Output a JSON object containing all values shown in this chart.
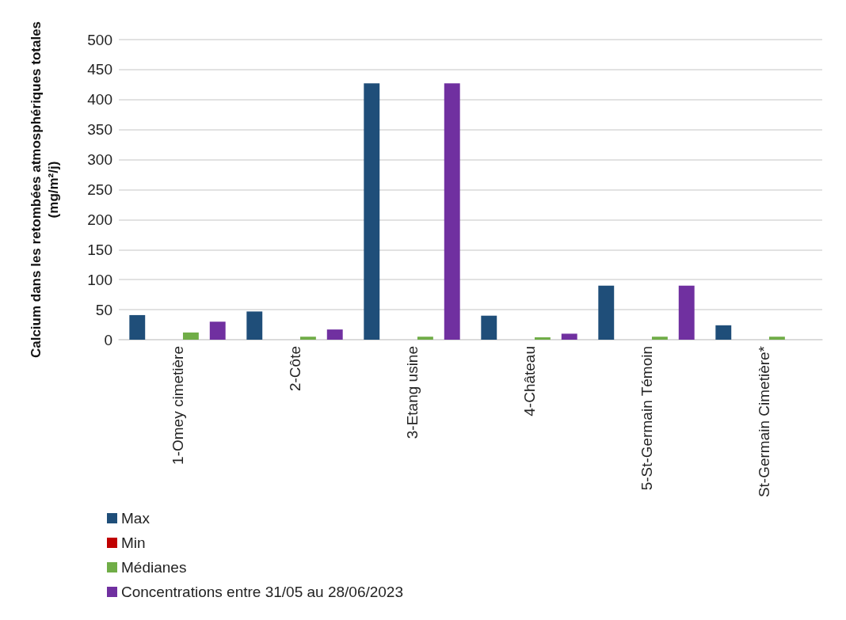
{
  "chart_data": {
    "type": "bar",
    "ylabel": "Calcium dans les retombées atmosphériques totales\n(mg/m²/j)",
    "categories": [
      "1-Omey cimetière",
      "2-Côte",
      "3-Etang usine",
      "4-Château",
      "5-St-Germain Témoin",
      "St-Germain Cimetière*"
    ],
    "series": [
      {
        "name": "Max",
        "color": "#1f4e79",
        "values": [
          41,
          47,
          427,
          40,
          90,
          24
        ]
      },
      {
        "name": "Min",
        "color": "#c00000",
        "values": [
          0,
          0,
          0,
          0,
          0,
          0
        ]
      },
      {
        "name": "Médianes",
        "color": "#70ad47",
        "values": [
          12,
          5,
          5,
          4,
          5,
          5
        ]
      },
      {
        "name": "Concentrations entre 31/05 au 28/06/2023",
        "color": "#7030a0",
        "values": [
          30,
          17,
          427,
          10,
          90,
          null
        ]
      }
    ],
    "ylim": [
      0,
      500
    ],
    "yticks": [
      0,
      50,
      100,
      150,
      200,
      250,
      300,
      350,
      400,
      450,
      500
    ],
    "grid": "y",
    "legend": "bottom left"
  }
}
